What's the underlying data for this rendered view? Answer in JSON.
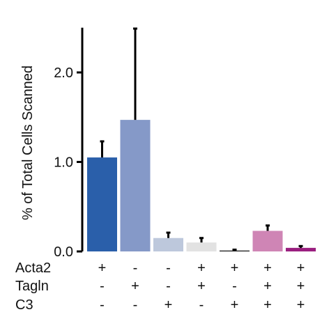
{
  "chart_data": {
    "type": "bar",
    "ylabel": "% of Total Cells Scanned",
    "ylim": [
      0,
      2.5
    ],
    "yticks": [
      0.0,
      1.0,
      2.0
    ],
    "ytick_labels": [
      "0.0",
      "1.0",
      "2.0"
    ],
    "grid": false,
    "categories": [
      "Acta2+ Tagln- C3-",
      "Acta2- Tagln+ C3-",
      "Acta2- Tagln- C3+",
      "Acta2+ Tagln+ C3-",
      "Acta2+ Tagln- C3+",
      "Acta2+ Tagln+ C3+ (a)",
      "Acta2+ Tagln+ C3+ (b)"
    ],
    "values": [
      1.05,
      1.47,
      0.15,
      0.1,
      0.01,
      0.23,
      0.04
    ],
    "errors": [
      0.18,
      1.02,
      0.06,
      0.05,
      0.01,
      0.06,
      0.02
    ],
    "colors": [
      "#2a5faa",
      "#8599c8",
      "#bdc8dc",
      "#e2e2e2",
      "#1a1a1a",
      "#cf85b5",
      "#9a1f7f"
    ],
    "marker_rows": [
      {
        "label": "Acta2",
        "signs": [
          "+",
          "-",
          "-",
          "+",
          "+",
          "+",
          "+"
        ]
      },
      {
        "label": "Tagln",
        "signs": [
          "-",
          "+",
          "-",
          "+",
          "-",
          "+",
          "+"
        ]
      },
      {
        "label": "C3",
        "signs": [
          "-",
          "-",
          "+",
          "-",
          "+",
          "+",
          "+"
        ]
      }
    ]
  }
}
